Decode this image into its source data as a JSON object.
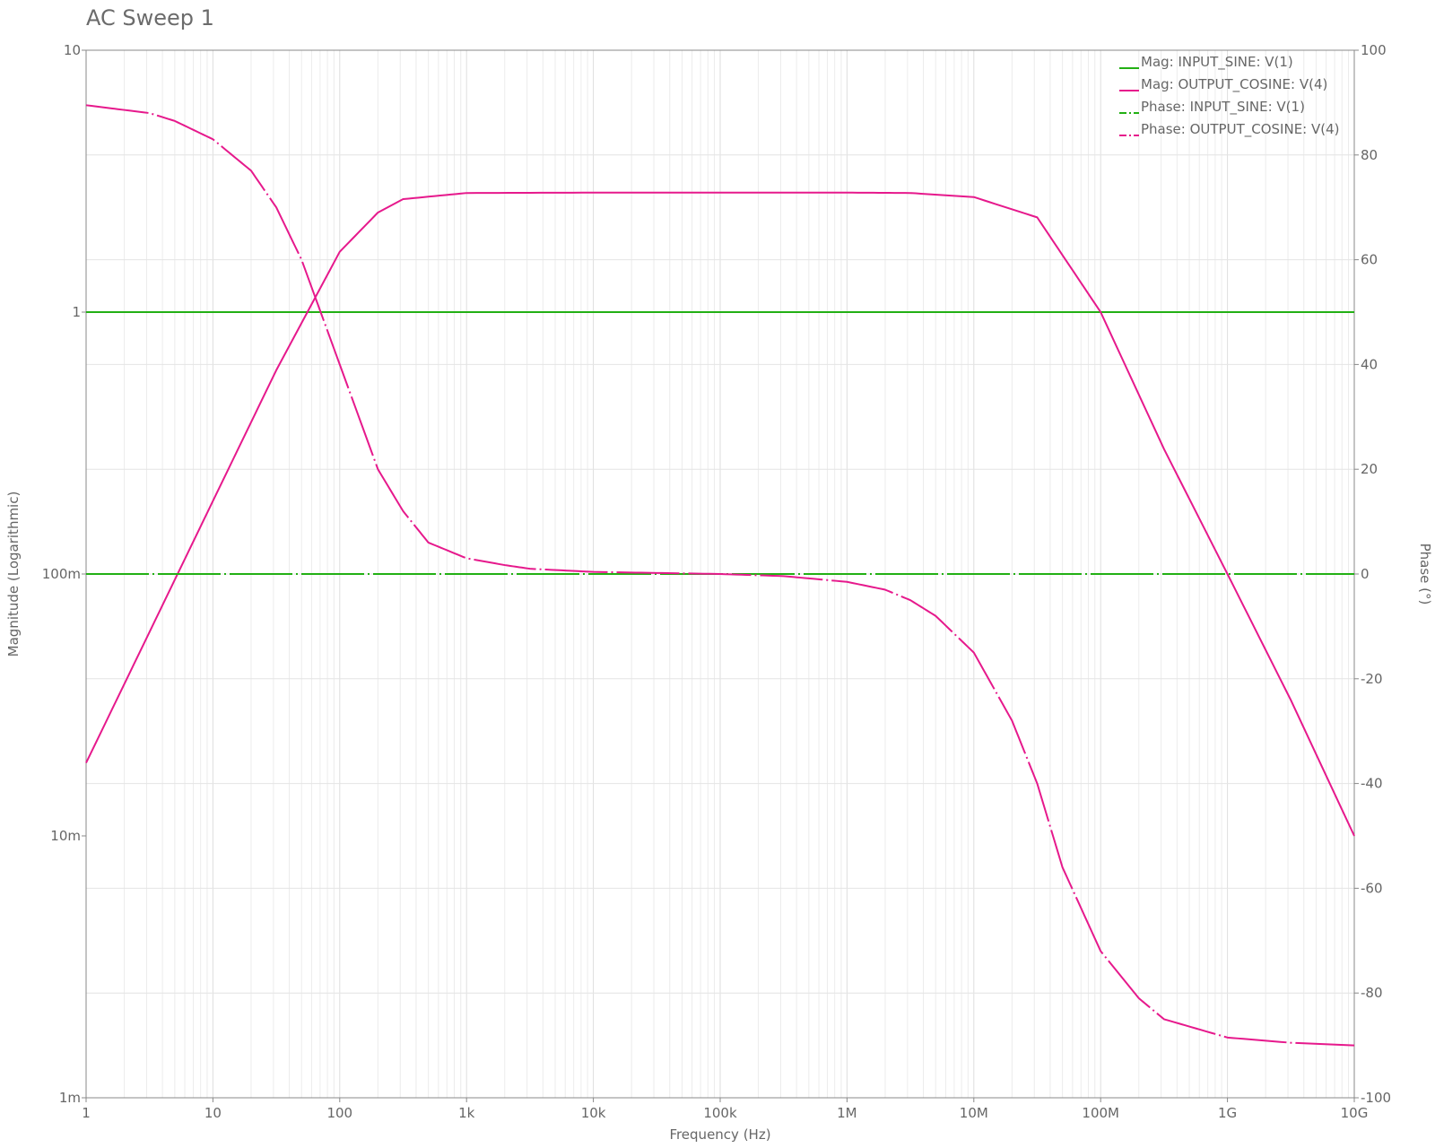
{
  "chart_data": {
    "title": "AC Sweep 1",
    "xlabel": "Frequency (Hz)",
    "ylabel_left": "Magnitude (Logarithmic)",
    "ylabel_right": "Phase (°)",
    "x_scale": "log",
    "x_range": [
      1,
      10000000000
    ],
    "x_ticks": [
      {
        "value": 1,
        "label": "1"
      },
      {
        "value": 10,
        "label": "10"
      },
      {
        "value": 100,
        "label": "100"
      },
      {
        "value": 1000,
        "label": "1k"
      },
      {
        "value": 10000,
        "label": "10k"
      },
      {
        "value": 100000,
        "label": "100k"
      },
      {
        "value": 1000000,
        "label": "1M"
      },
      {
        "value": 10000000,
        "label": "10M"
      },
      {
        "value": 100000000,
        "label": "100M"
      },
      {
        "value": 1000000000,
        "label": "1G"
      },
      {
        "value": 10000000000,
        "label": "10G"
      }
    ],
    "y_left_scale": "log",
    "y_left_range": [
      0.001,
      10
    ],
    "y_left_ticks": [
      {
        "value": 10,
        "label": "10"
      },
      {
        "value": 1,
        "label": "1"
      },
      {
        "value": 0.1,
        "label": "100m"
      },
      {
        "value": 0.01,
        "label": "10m"
      },
      {
        "value": 0.001,
        "label": "1m"
      }
    ],
    "y_right_scale": "linear",
    "y_right_range": [
      -100,
      100
    ],
    "y_right_ticks": [
      {
        "value": 100,
        "label": "100"
      },
      {
        "value": 80,
        "label": "80"
      },
      {
        "value": 60,
        "label": "60"
      },
      {
        "value": 40,
        "label": "40"
      },
      {
        "value": 20,
        "label": "20"
      },
      {
        "value": 0,
        "label": "0"
      },
      {
        "value": -20,
        "label": "-20"
      },
      {
        "value": -40,
        "label": "-40"
      },
      {
        "value": -60,
        "label": "-60"
      },
      {
        "value": -80,
        "label": "-80"
      },
      {
        "value": -100,
        "label": "-100"
      }
    ],
    "grid": true,
    "legend_position": "top-right",
    "series": [
      {
        "name": "Mag: INPUT_SINE: V(1)",
        "axis": "left",
        "color": "#22b014",
        "style": "solid",
        "x": [
          1,
          10000000000
        ],
        "y": [
          1,
          1
        ]
      },
      {
        "name": "Mag: OUTPUT_COSINE: V(4)",
        "axis": "left",
        "color": "#e6198c",
        "style": "solid",
        "x": [
          1,
          3.16,
          10,
          31.6,
          100,
          200,
          316,
          1000,
          10000,
          100000,
          1000000,
          3160000,
          10000000,
          31600000,
          100000000,
          316000000,
          1000000000,
          3160000000,
          10000000000
        ],
        "y": [
          0.019,
          0.06,
          0.19,
          0.6,
          1.7,
          2.4,
          2.7,
          2.85,
          2.86,
          2.86,
          2.86,
          2.85,
          2.75,
          2.3,
          1.0,
          0.3,
          0.1,
          0.033,
          0.01
        ]
      },
      {
        "name": "Phase: INPUT_SINE: V(1)",
        "axis": "right",
        "color": "#22b014",
        "style": "dashdot",
        "x": [
          1,
          10000000000
        ],
        "y": [
          0,
          0
        ]
      },
      {
        "name": "Phase: OUTPUT_COSINE: V(4)",
        "axis": "right",
        "color": "#e6198c",
        "style": "dashdot",
        "x": [
          1,
          3.16,
          5,
          10,
          20,
          31.6,
          50,
          100,
          200,
          316,
          500,
          1000,
          2000,
          3160,
          10000,
          31600,
          100000,
          316000,
          1000000,
          2000000,
          3160000,
          5000000,
          10000000,
          20000000,
          31600000,
          50000000,
          100000000,
          200000000,
          316000000,
          1000000000,
          3160000000,
          10000000000
        ],
        "y": [
          89.5,
          88,
          86.5,
          83,
          77,
          70,
          60,
          40,
          20,
          12,
          6,
          3,
          1.7,
          1,
          0.4,
          0.2,
          0,
          -0.4,
          -1.5,
          -3,
          -5,
          -8,
          -15,
          -28,
          -40,
          -56,
          -72,
          -81,
          -85,
          -88.5,
          -89.5,
          -90
        ]
      }
    ]
  }
}
